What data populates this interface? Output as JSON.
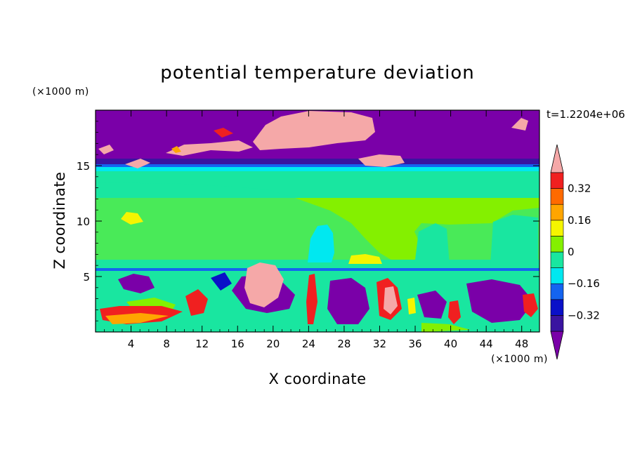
{
  "chart_data": {
    "type": "heatmap",
    "title": "potential temperature deviation",
    "xlabel": "X coordinate",
    "ylabel": "Z coordinate",
    "x_unit": "(×1000 m)",
    "y_unit": "(×1000 m)",
    "time_label": "t=1.2204e+06",
    "xlim": [
      0,
      50
    ],
    "ylim": [
      0,
      20
    ],
    "x_ticks": [
      4,
      8,
      12,
      16,
      20,
      24,
      28,
      32,
      36,
      40,
      44,
      48
    ],
    "y_ticks": [
      5,
      10,
      15
    ],
    "colorbar": {
      "levels": [
        -0.4,
        -0.32,
        -0.24,
        -0.16,
        -0.08,
        0,
        0.08,
        0.16,
        0.24,
        0.32,
        0.4
      ],
      "tick_labels": [
        "0.32",
        "0.16",
        "0",
        "−0.16",
        "−0.32"
      ],
      "tick_values": [
        0.32,
        0.16,
        0,
        -0.16,
        -0.32
      ],
      "colors": [
        "#7a00a8",
        "#3a14a0",
        "#0a10c8",
        "#1464f0",
        "#00e8f0",
        "#19e6a0",
        "#84f000",
        "#f5f500",
        "#ffa500",
        "#ff6a00",
        "#f02020",
        "#f5a8a8"
      ]
    },
    "grid": false,
    "legend_placement": "right"
  }
}
